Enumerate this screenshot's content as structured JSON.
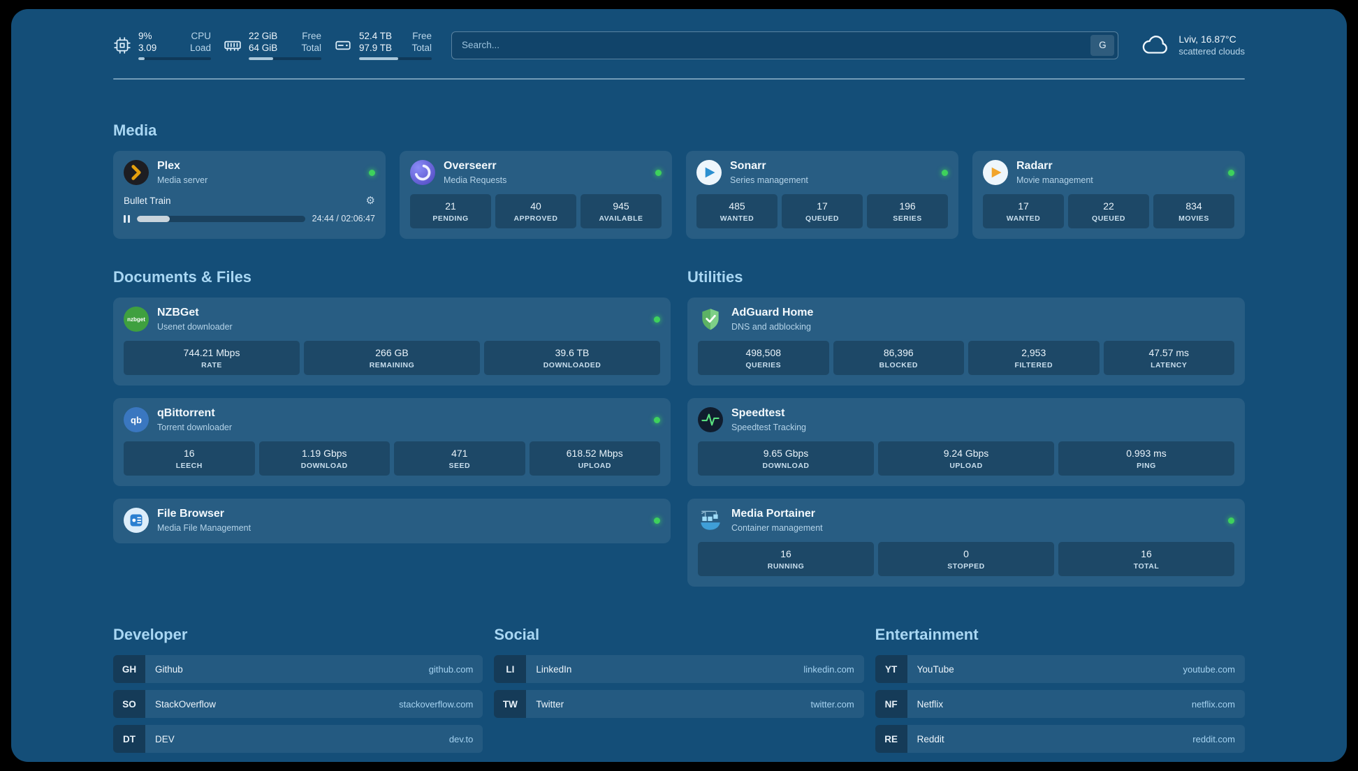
{
  "icons": {
    "gear": "⚙"
  },
  "colors": {
    "page_background": "#144e78",
    "accent": "#a9d7f3",
    "status_online": "#3ed15c"
  },
  "topbar": {
    "cpu": {
      "value": "9%",
      "sub_value": "3.09",
      "label": "CPU",
      "sub_label": "Load",
      "progress_pct": 9
    },
    "memory": {
      "value": "22 GiB",
      "sub_value": "64 GiB",
      "label": "Free",
      "sub_label": "Total",
      "progress_pct": 34
    },
    "disk": {
      "value": "52.4 TB",
      "sub_value": "97.9 TB",
      "label": "Free",
      "sub_label": "Total",
      "progress_pct": 54
    },
    "search": {
      "placeholder": "Search...",
      "provider": "G"
    },
    "weather": {
      "location": "Lviv, 16.87°C",
      "condition": "scattered clouds"
    }
  },
  "media": {
    "title": "Media",
    "plex": {
      "name": "Plex",
      "desc": "Media server",
      "now_playing": {
        "title": "Bullet Train",
        "time": "24:44 / 02:06:47",
        "progress_pct": 19.5
      }
    },
    "overseerr": {
      "name": "Overseerr",
      "desc": "Media Requests",
      "stats": [
        {
          "value": "21",
          "label": "PENDING"
        },
        {
          "value": "40",
          "label": "APPROVED"
        },
        {
          "value": "945",
          "label": "AVAILABLE"
        }
      ]
    },
    "sonarr": {
      "name": "Sonarr",
      "desc": "Series management",
      "stats": [
        {
          "value": "485",
          "label": "WANTED"
        },
        {
          "value": "17",
          "label": "QUEUED"
        },
        {
          "value": "196",
          "label": "SERIES"
        }
      ]
    },
    "radarr": {
      "name": "Radarr",
      "desc": "Movie management",
      "stats": [
        {
          "value": "17",
          "label": "WANTED"
        },
        {
          "value": "22",
          "label": "QUEUED"
        },
        {
          "value": "834",
          "label": "MOVIES"
        }
      ]
    }
  },
  "documents": {
    "title": "Documents & Files",
    "nzbget": {
      "name": "NZBGet",
      "desc": "Usenet downloader",
      "icon_text": "nzbget",
      "stats": [
        {
          "value": "744.21 Mbps",
          "label": "RATE"
        },
        {
          "value": "266 GB",
          "label": "REMAINING"
        },
        {
          "value": "39.6 TB",
          "label": "DOWNLOADED"
        }
      ]
    },
    "qbittorrent": {
      "name": "qBittorrent",
      "desc": "Torrent downloader",
      "icon_text": "qb",
      "stats": [
        {
          "value": "16",
          "label": "LEECH"
        },
        {
          "value": "1.19 Gbps",
          "label": "DOWNLOAD"
        },
        {
          "value": "471",
          "label": "SEED"
        },
        {
          "value": "618.52 Mbps",
          "label": "UPLOAD"
        }
      ]
    },
    "filebrowser": {
      "name": "File Browser",
      "desc": "Media File Management"
    }
  },
  "utilities": {
    "title": "Utilities",
    "adguard": {
      "name": "AdGuard Home",
      "desc": "DNS and adblocking",
      "stats": [
        {
          "value": "498,508",
          "label": "QUERIES"
        },
        {
          "value": "86,396",
          "label": "BLOCKED"
        },
        {
          "value": "2,953",
          "label": "FILTERED"
        },
        {
          "value": "47.57 ms",
          "label": "LATENCY"
        }
      ]
    },
    "speedtest": {
      "name": "Speedtest",
      "desc": "Speedtest Tracking",
      "stats": [
        {
          "value": "9.65 Gbps",
          "label": "DOWNLOAD"
        },
        {
          "value": "9.24 Gbps",
          "label": "UPLOAD"
        },
        {
          "value": "0.993 ms",
          "label": "PING"
        }
      ]
    },
    "portainer": {
      "name": "Media Portainer",
      "desc": "Container management",
      "stats": [
        {
          "value": "16",
          "label": "RUNNING"
        },
        {
          "value": "0",
          "label": "STOPPED"
        },
        {
          "value": "16",
          "label": "TOTAL"
        }
      ]
    }
  },
  "bookmarks": {
    "developer": {
      "title": "Developer",
      "items": [
        {
          "abbr": "GH",
          "name": "Github",
          "url": "github.com"
        },
        {
          "abbr": "SO",
          "name": "StackOverflow",
          "url": "stackoverflow.com"
        },
        {
          "abbr": "DT",
          "name": "DEV",
          "url": "dev.to"
        }
      ]
    },
    "social": {
      "title": "Social",
      "items": [
        {
          "abbr": "LI",
          "name": "LinkedIn",
          "url": "linkedin.com"
        },
        {
          "abbr": "TW",
          "name": "Twitter",
          "url": "twitter.com"
        }
      ]
    },
    "entertainment": {
      "title": "Entertainment",
      "items": [
        {
          "abbr": "YT",
          "name": "YouTube",
          "url": "youtube.com"
        },
        {
          "abbr": "NF",
          "name": "Netflix",
          "url": "netflix.com"
        },
        {
          "abbr": "RE",
          "name": "Reddit",
          "url": "reddit.com"
        }
      ]
    }
  }
}
